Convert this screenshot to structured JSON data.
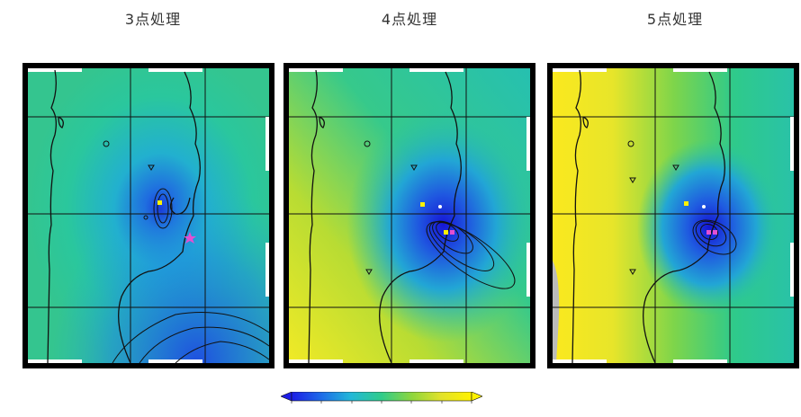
{
  "panels": [
    {
      "title": "3点処理"
    },
    {
      "title": "4点処理"
    },
    {
      "title": "5点処理"
    }
  ],
  "colorbar": {
    "colors": [
      "#1d1de6",
      "#1d6ee8",
      "#22b8d8",
      "#2fcc8a",
      "#8fd63c",
      "#e2e22a",
      "#fff200"
    ]
  }
}
